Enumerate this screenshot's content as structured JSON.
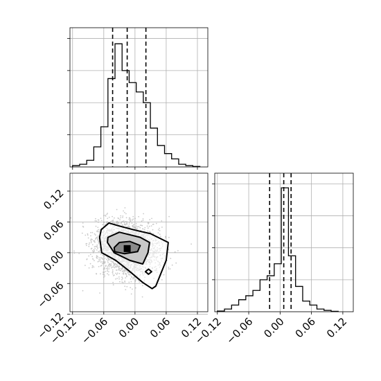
{
  "chart_data": {
    "type": "corner",
    "title": "",
    "grid": true,
    "colors": {
      "line": "#000000",
      "grid": "#b0b0b0",
      "points": "#9e9e9e",
      "level_inner": "#8a8a8a",
      "level_mid": "#c9c9c9"
    },
    "tick_values": [
      -0.12,
      -0.06,
      0.0,
      0.06,
      0.12
    ],
    "tick_labels": [
      "−0.12",
      "−0.06",
      "0.00",
      "0.06",
      "0.12"
    ],
    "panels": [
      {
        "id": "hist-x",
        "type": "histogram",
        "axis_range": [
          -0.125,
          0.14
        ],
        "ylim": [
          0,
          1
        ],
        "bins": [
          {
            "x": [
              -0.12,
              -0.1064
            ],
            "count": 0.01
          },
          {
            "x": [
              -0.1064,
              -0.0928
            ],
            "count": 0.02
          },
          {
            "x": [
              -0.0928,
              -0.0792
            ],
            "count": 0.05
          },
          {
            "x": [
              -0.0792,
              -0.0656
            ],
            "count": 0.15
          },
          {
            "x": [
              -0.0656,
              -0.052
            ],
            "count": 0.3
          },
          {
            "x": [
              -0.052,
              -0.0384
            ],
            "count": 0.66
          },
          {
            "x": [
              -0.0384,
              -0.0248
            ],
            "count": 0.92
          },
          {
            "x": [
              -0.0248,
              -0.0112
            ],
            "count": 0.72
          },
          {
            "x": [
              -0.0112,
              0.0024
            ],
            "count": 0.63
          },
          {
            "x": [
              0.0024,
              0.016
            ],
            "count": 0.56
          },
          {
            "x": [
              0.016,
              0.0296
            ],
            "count": 0.48
          },
          {
            "x": [
              0.0296,
              0.0432
            ],
            "count": 0.29
          },
          {
            "x": [
              0.0432,
              0.0568
            ],
            "count": 0.16
          },
          {
            "x": [
              0.0568,
              0.0704
            ],
            "count": 0.1
          },
          {
            "x": [
              0.0704,
              0.084
            ],
            "count": 0.06
          },
          {
            "x": [
              0.084,
              0.0976
            ],
            "count": 0.02
          },
          {
            "x": [
              0.0976,
              0.1112
            ],
            "count": 0.01
          },
          {
            "x": [
              0.1112,
              0.1248
            ],
            "count": 0.004
          }
        ],
        "quantiles": [
          -0.043,
          -0.015,
          0.021
        ],
        "x_tick_labels_shown": false,
        "y_tick_labels_shown": false
      },
      {
        "id": "scatter-xy",
        "type": "2d-density",
        "xlim": [
          -0.125,
          0.14
        ],
        "ylim": [
          -0.115,
          0.155
        ],
        "density_peak": [
          -0.015,
          0.008
        ],
        "contour_levels": [
          {
            "level": "outer",
            "path": [
              [
                -0.065,
                0.045
              ],
              [
                -0.05,
                0.058
              ],
              [
                -0.03,
                0.052
              ],
              [
                0.0,
                0.044
              ],
              [
                0.03,
                0.037
              ],
              [
                0.064,
                0.02
              ],
              [
                0.06,
                -0.015
              ],
              [
                0.05,
                -0.04
              ],
              [
                0.04,
                -0.065
              ],
              [
                0.033,
                -0.07
              ],
              [
                0.015,
                -0.058
              ],
              [
                -0.012,
                -0.035
              ],
              [
                -0.037,
                -0.015
              ],
              [
                -0.064,
                0.0
              ],
              [
                -0.068,
                0.03
              ]
            ]
          },
          {
            "level": "middle",
            "path": [
              [
                -0.052,
                0.03
              ],
              [
                -0.03,
                0.04
              ],
              [
                0.01,
                0.03
              ],
              [
                0.028,
                0.02
              ],
              [
                0.025,
                0.0
              ],
              [
                0.015,
                -0.022
              ],
              [
                -0.01,
                -0.015
              ],
              [
                -0.04,
                0.0
              ],
              [
                -0.053,
                0.02
              ]
            ]
          },
          {
            "level": "inner",
            "path": [
              [
                -0.04,
                0.01
              ],
              [
                -0.03,
                0.02
              ],
              [
                -0.01,
                0.022
              ],
              [
                0.01,
                0.014
              ],
              [
                0.005,
                0.002
              ],
              [
                -0.02,
                -0.002
              ],
              [
                -0.039,
                0.002
              ]
            ]
          },
          {
            "level": "island",
            "path": [
              [
                0.02,
                -0.037
              ],
              [
                0.026,
                -0.042
              ],
              [
                0.032,
                -0.037
              ],
              [
                0.026,
                -0.032
              ]
            ]
          }
        ],
        "x_tick_labels_shown": true,
        "y_tick_labels_shown": true
      },
      {
        "id": "hist-y",
        "type": "histogram",
        "axis_range": [
          -0.125,
          0.14
        ],
        "ylim": [
          0,
          1
        ],
        "bins": [
          {
            "x": [
              -0.12,
              -0.1064
            ],
            "count": 0.005
          },
          {
            "x": [
              -0.1064,
              -0.0928
            ],
            "count": 0.02
          },
          {
            "x": [
              -0.0928,
              -0.0792
            ],
            "count": 0.05
          },
          {
            "x": [
              -0.0792,
              -0.0656
            ],
            "count": 0.09
          },
          {
            "x": [
              -0.0656,
              -0.052
            ],
            "count": 0.12
          },
          {
            "x": [
              -0.052,
              -0.0384
            ],
            "count": 0.16
          },
          {
            "x": [
              -0.0384,
              -0.0248
            ],
            "count": 0.24
          },
          {
            "x": [
              -0.0248,
              -0.0112
            ],
            "count": 0.27
          },
          {
            "x": [
              -0.0112,
              0.0024
            ],
            "count": 0.36
          },
          {
            "x": [
              0.0024,
              0.016
            ],
            "count": 0.93
          },
          {
            "x": [
              0.016,
              0.0296
            ],
            "count": 0.42
          },
          {
            "x": [
              0.0296,
              0.0432
            ],
            "count": 0.19
          },
          {
            "x": [
              0.0432,
              0.0568
            ],
            "count": 0.08
          },
          {
            "x": [
              0.0568,
              0.0704
            ],
            "count": 0.05
          },
          {
            "x": [
              0.0704,
              0.084
            ],
            "count": 0.02
          },
          {
            "x": [
              0.084,
              0.0976
            ],
            "count": 0.01
          },
          {
            "x": [
              0.0976,
              0.1112
            ],
            "count": 0.003
          }
        ],
        "quantiles": [
          -0.02,
          0.007,
          0.021
        ],
        "x_tick_labels_shown": true,
        "y_tick_labels_shown": false
      }
    ]
  }
}
